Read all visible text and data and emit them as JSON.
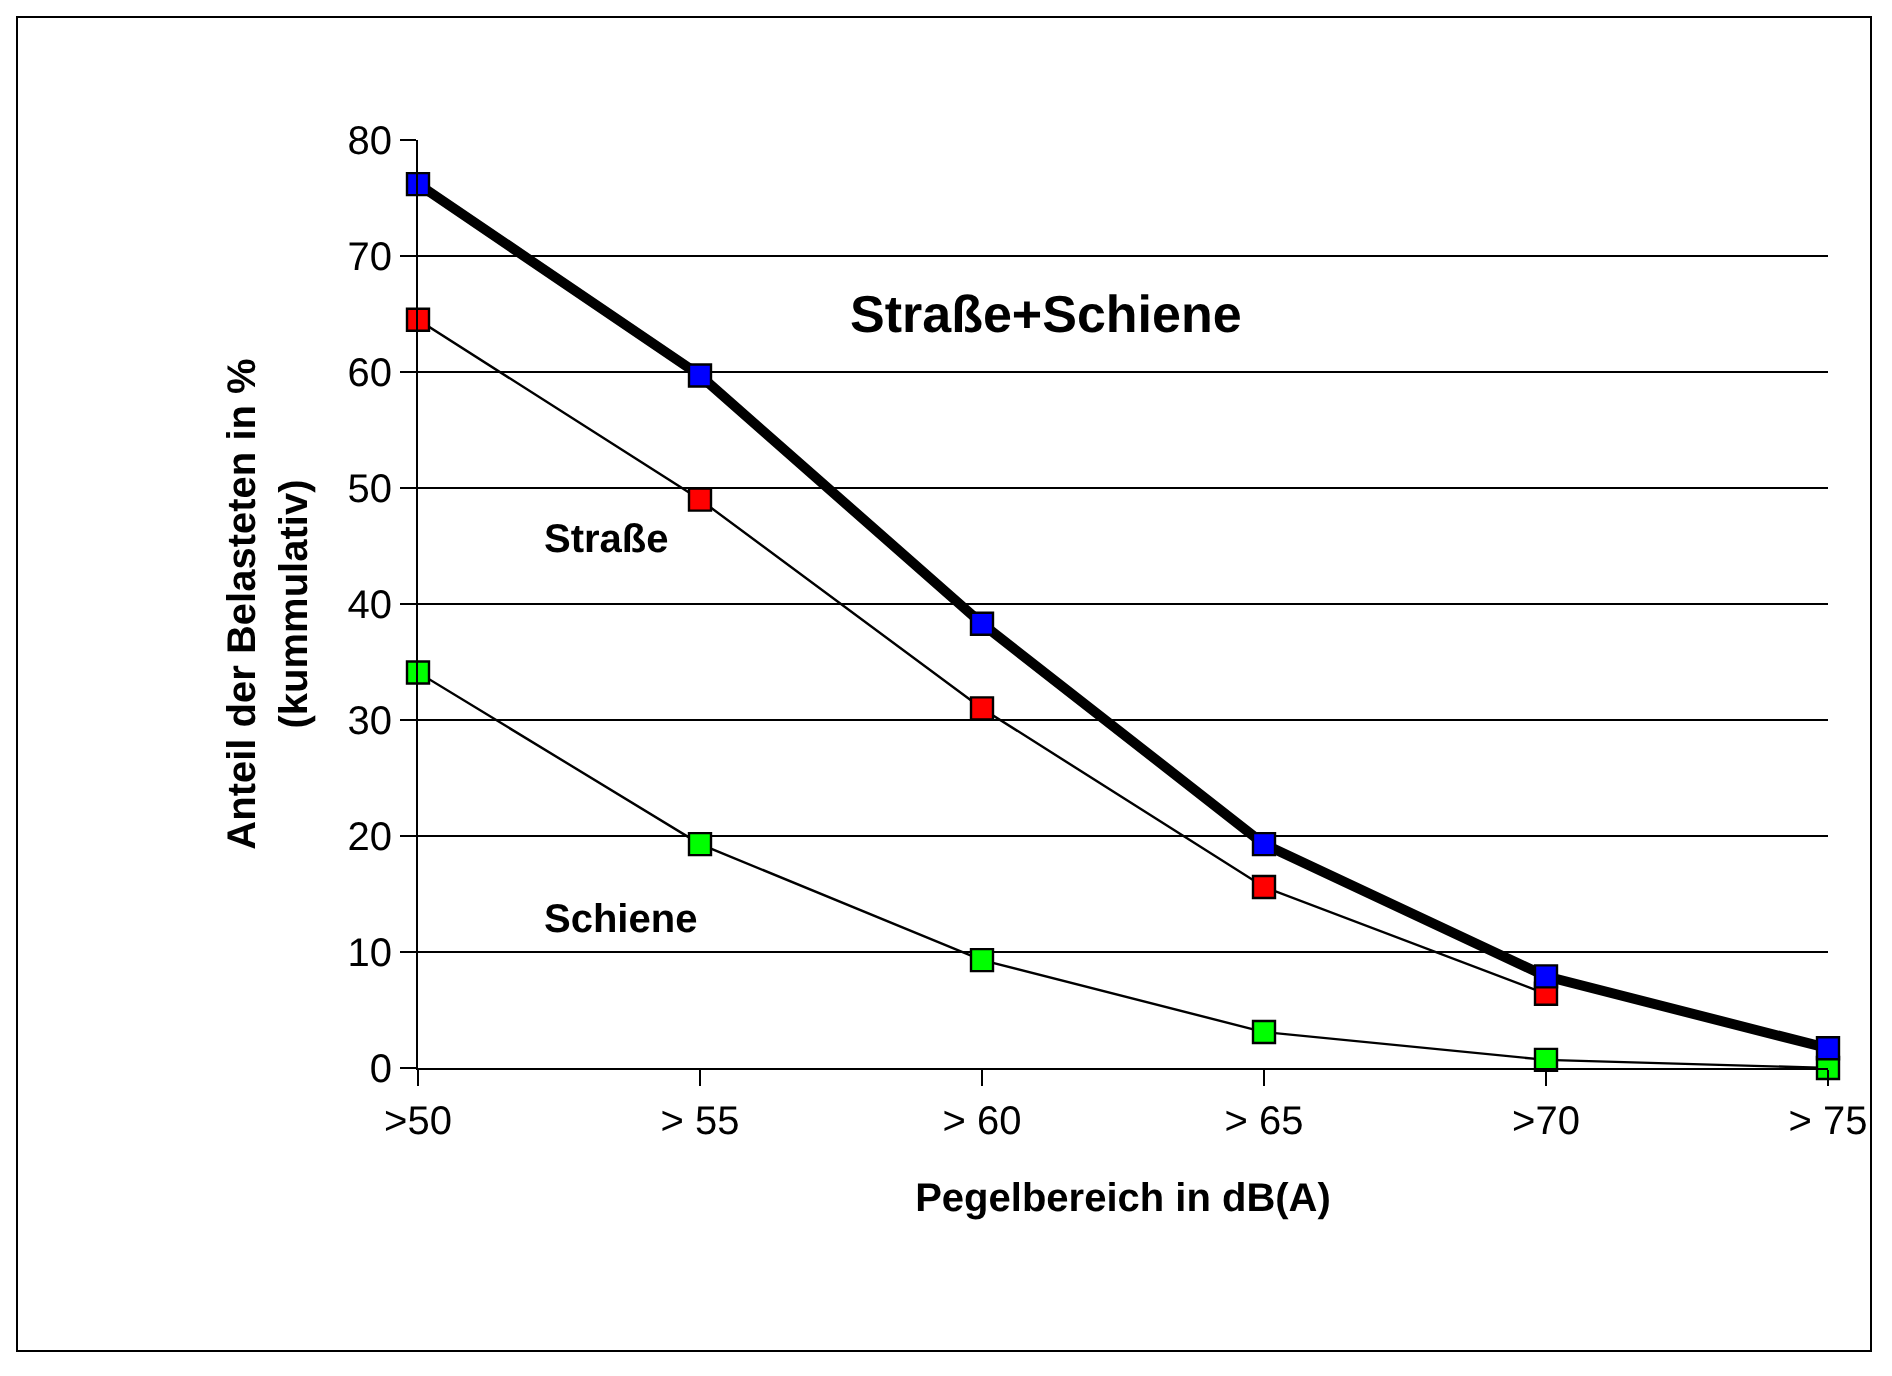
{
  "chart_data": {
    "type": "line",
    "xlabel": "Pegelbereich in dB(A)",
    "ylabel": "Anteil der Belasteten in %\n(kummulativ)",
    "categories": [
      ">50",
      "> 55",
      "> 60",
      "> 65",
      ">70",
      "> 75"
    ],
    "series": [
      {
        "name": "Straße+Schiene",
        "color": "#0000ff",
        "values": [
          76.2,
          59.7,
          38.3,
          19.3,
          7.9,
          1.7
        ]
      },
      {
        "name": "Straße",
        "color": "#ff0000",
        "values": [
          64.5,
          49.0,
          31.0,
          15.6,
          6.4,
          null
        ]
      },
      {
        "name": "Schiene",
        "color": "#00ff00",
        "values": [
          34.1,
          19.3,
          9.3,
          3.1,
          0.7,
          0
        ]
      }
    ],
    "ylim": [
      0,
      80
    ],
    "yticks": [
      0,
      10,
      20,
      30,
      40,
      50,
      60,
      70,
      80
    ],
    "grid": "y",
    "legend": false,
    "marker": "square",
    "line_style": "solid"
  }
}
